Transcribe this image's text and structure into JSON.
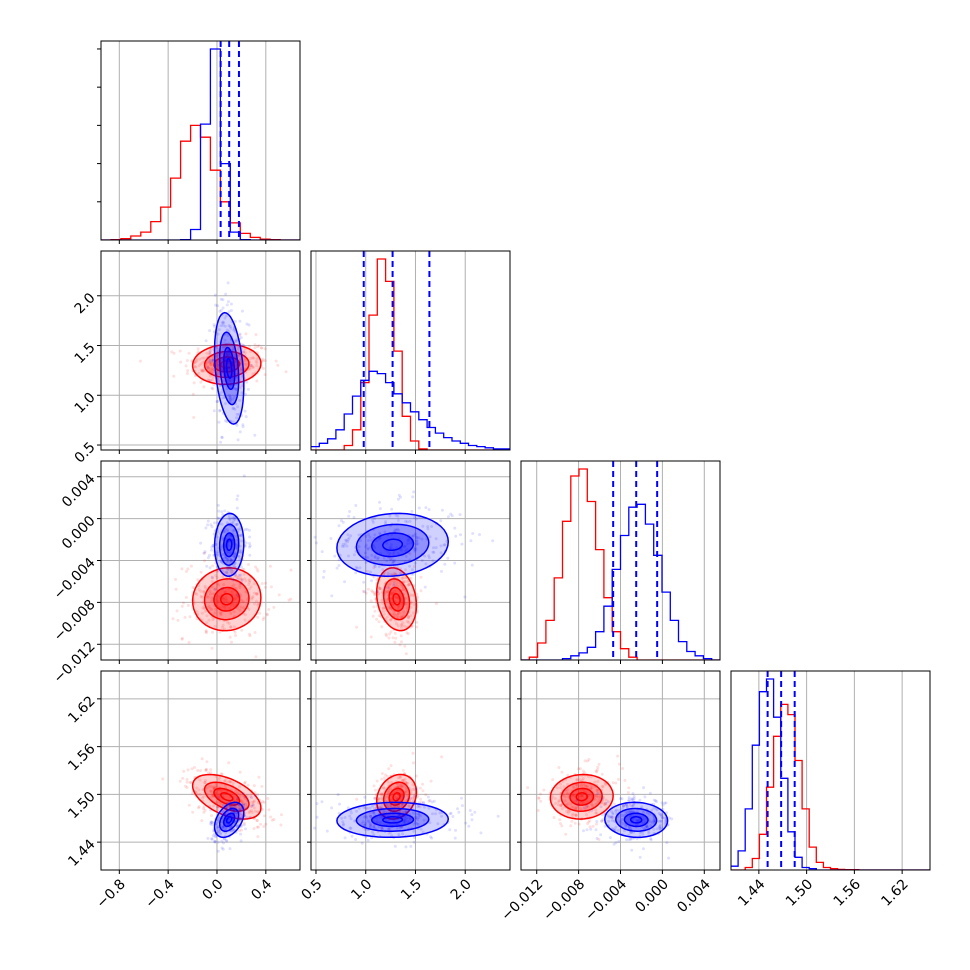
{
  "chart_data": {
    "type": "corner",
    "grid": true,
    "colors": {
      "blue": "#0000ff",
      "red": "#ff0000",
      "grid": "#b0b0b0"
    },
    "series": [
      {
        "color": "#0000ff",
        "means": [
          0.1,
          1.27,
          -0.0025,
          1.468
        ],
        "sds": [
          0.06,
          0.28,
          0.0015,
          0.011
        ],
        "quantiles": [
          [
            0.03,
            0.1,
            0.18
          ],
          [
            0.98,
            1.27,
            1.64
          ],
          [
            -0.0047,
            -0.0025,
            -0.0005
          ],
          [
            1.451,
            1.468,
            1.485
          ]
        ]
      },
      {
        "color": "#ff0000",
        "means": [
          0.08,
          1.31,
          -0.0077,
          1.497
        ],
        "sds": [
          0.14,
          0.1,
          0.0015,
          0.014
        ]
      }
    ],
    "params": [
      {
        "range": [
          -0.95,
          0.68
        ],
        "ticks": [
          -0.8,
          -0.4,
          0.0,
          0.4
        ],
        "labels": [
          "−0.8",
          "−0.4",
          "0.0",
          "0.4"
        ]
      },
      {
        "range": [
          0.45,
          2.45
        ],
        "ticks": [
          0.5,
          1.0,
          1.5,
          2.0
        ],
        "labels": [
          "0.5",
          "1.0",
          "1.5",
          "2.0"
        ]
      },
      {
        "range": [
          -0.0135,
          0.0055
        ],
        "ticks": [
          -0.012,
          -0.008,
          -0.004,
          0.0,
          0.004
        ],
        "labels": [
          "−0.012",
          "−0.008",
          "−0.004",
          "0.000",
          "0.004"
        ]
      },
      {
        "range": [
          1.405,
          1.655
        ],
        "ticks": [
          1.44,
          1.5,
          1.56,
          1.62
        ],
        "labels": [
          "1.44",
          "1.50",
          "1.56",
          "1.62"
        ]
      }
    ],
    "hist1d": [
      {
        "bins": 20,
        "blue": [
          0,
          0,
          0,
          0,
          0,
          0,
          0,
          0,
          0.2,
          8,
          88,
          145,
          58,
          6,
          0.3,
          0,
          0,
          0,
          0,
          0
        ],
        "red": [
          0,
          0.3,
          1,
          3,
          6,
          14,
          25,
          47,
          75,
          87,
          78,
          53,
          29,
          13,
          5,
          2,
          0.6,
          0.2,
          0,
          0
        ]
      },
      {
        "bins": 24,
        "blue": [
          3,
          6,
          10,
          18,
          32,
          48,
          62,
          70,
          68,
          60,
          50,
          42,
          34,
          27,
          20,
          15,
          11,
          8,
          6,
          4,
          3,
          2,
          1,
          1
        ],
        "red": [
          0,
          0,
          0,
          0,
          4,
          18,
          60,
          120,
          170,
          150,
          88,
          30,
          8,
          1,
          0,
          0,
          0,
          0,
          0,
          0,
          0,
          0,
          0,
          0
        ]
      },
      {
        "bins": 24,
        "blue": [
          0,
          0,
          0,
          0,
          0,
          1,
          3,
          5,
          9,
          20,
          38,
          64,
          88,
          108,
          110,
          96,
          74,
          48,
          28,
          13,
          6,
          3,
          1,
          0
        ],
        "red": [
          0,
          2,
          12,
          28,
          58,
          98,
          130,
          135,
          112,
          78,
          44,
          20,
          8,
          2,
          0,
          0,
          0,
          0,
          0,
          0,
          0,
          0,
          0,
          0
        ]
      },
      {
        "bins": 28,
        "blue": [
          3,
          15,
          48,
          98,
          140,
          150,
          120,
          72,
          30,
          10,
          2,
          1,
          0,
          0,
          0,
          0,
          0,
          0,
          0,
          0,
          0,
          0,
          0,
          0,
          0,
          0,
          0,
          0
        ],
        "red": [
          0,
          0,
          2,
          9,
          28,
          65,
          105,
          130,
          122,
          86,
          48,
          18,
          6,
          2,
          1,
          0.5,
          0.3,
          0.2,
          0,
          0,
          0,
          0,
          0,
          0,
          0,
          0,
          0,
          0
        ]
      }
    ],
    "correlations": {
      "blue": {
        "1,0": -0.3,
        "2,0": 0.05,
        "2,1": 0.1,
        "3,0": 0.4,
        "3,1": 0.05,
        "3,2": -0.05
      },
      "red": {
        "1,0": 0.05,
        "2,0": 0.05,
        "2,1": -0.2,
        "3,0": -0.5,
        "3,1": 0.2,
        "3,2": 0.05
      }
    }
  }
}
